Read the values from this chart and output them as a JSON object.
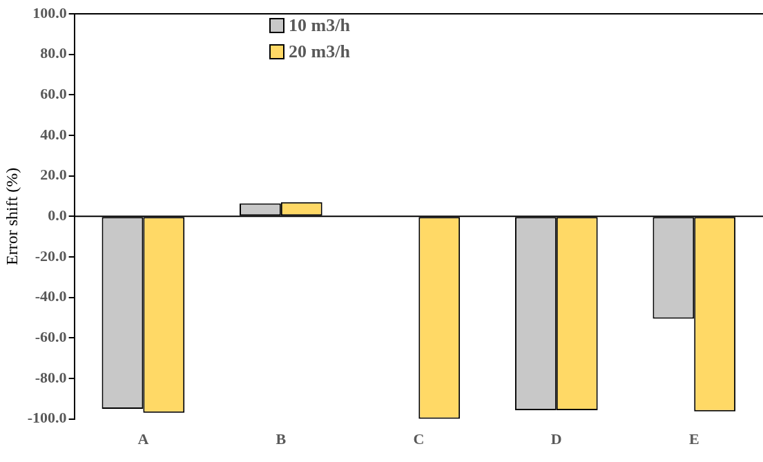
{
  "chart_data": {
    "type": "bar",
    "ylabel": "Error shift (%)",
    "categories": [
      "A",
      "B",
      "C",
      "D",
      "E"
    ],
    "series": [
      {
        "name": "10 m3/h",
        "color": "#c8c8c8",
        "values": [
          -95,
          6.4,
          0.3,
          -95.7,
          -50.5
        ]
      },
      {
        "name": "20 m3/h",
        "color": "#ffd966",
        "values": [
          -97,
          7,
          -100,
          -95.7,
          -96.3
        ]
      }
    ],
    "ylim": [
      -100,
      100
    ],
    "yticks": [
      {
        "value": -100,
        "label": "-100.0"
      },
      {
        "value": -80,
        "label": "-80.0"
      },
      {
        "value": -60,
        "label": "-60.0"
      },
      {
        "value": -40,
        "label": "-40.0"
      },
      {
        "value": -20,
        "label": "-20.0"
      },
      {
        "value": 0,
        "label": "0.0"
      },
      {
        "value": 20,
        "label": "20.0"
      },
      {
        "value": 40,
        "label": "40.0"
      },
      {
        "value": 60,
        "label": "60.0"
      },
      {
        "value": 80,
        "label": "80.0"
      },
      {
        "value": 100,
        "label": "100.0"
      }
    ],
    "ref_lines": [
      {
        "axis": "y",
        "value": 0,
        "color": "#000000"
      }
    ],
    "legend": "top left",
    "grid": false
  }
}
